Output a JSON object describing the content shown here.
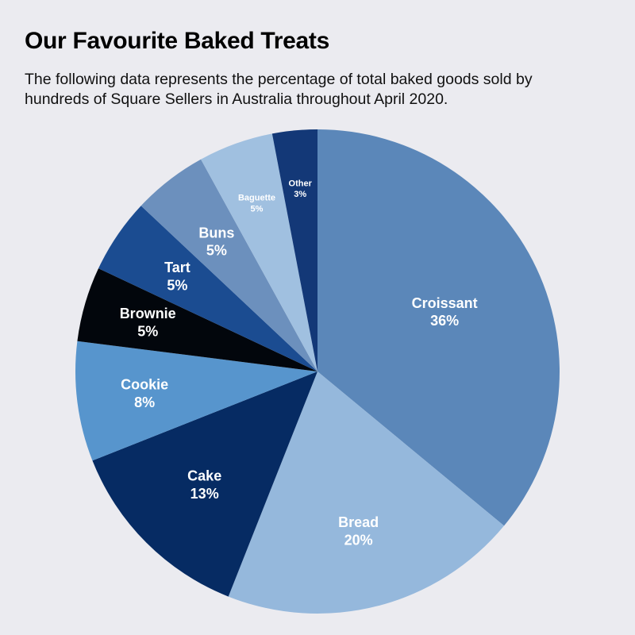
{
  "header": {
    "title": "Our Favourite Baked Treats",
    "subtitle": "The following data represents the percentage of total baked goods sold by hundreds of Square Sellers in Australia throughout April 2020."
  },
  "chart_data": {
    "type": "pie",
    "title": "Our Favourite Baked Treats",
    "subtitle": "The following data represents the percentage of total baked goods sold by hundreds of Square Sellers in Australia throughout April 2020.",
    "start_angle": "12 o'clock",
    "direction": "clockwise",
    "legend": "none",
    "slices": [
      {
        "name": "Croissant",
        "value": 36,
        "label": "36%",
        "color": "#5b87b9"
      },
      {
        "name": "Bread",
        "value": 20,
        "label": "20%",
        "color": "#95b8dc"
      },
      {
        "name": "Cake",
        "value": 13,
        "label": "13%",
        "color": "#062b63"
      },
      {
        "name": "Cookie",
        "value": 8,
        "label": "8%",
        "color": "#5795cd"
      },
      {
        "name": "Brownie",
        "value": 5,
        "label": "5%",
        "color": "#02060c"
      },
      {
        "name": "Tart",
        "value": 5,
        "label": "5%",
        "color": "#1b4c91"
      },
      {
        "name": "Buns",
        "value": 5,
        "label": "5%",
        "color": "#6c90bd"
      },
      {
        "name": "Baguette",
        "value": 5,
        "label": "5%",
        "color": "#a0c0e0"
      },
      {
        "name": "Other",
        "value": 3,
        "label": "3%",
        "color": "#133877"
      }
    ]
  }
}
